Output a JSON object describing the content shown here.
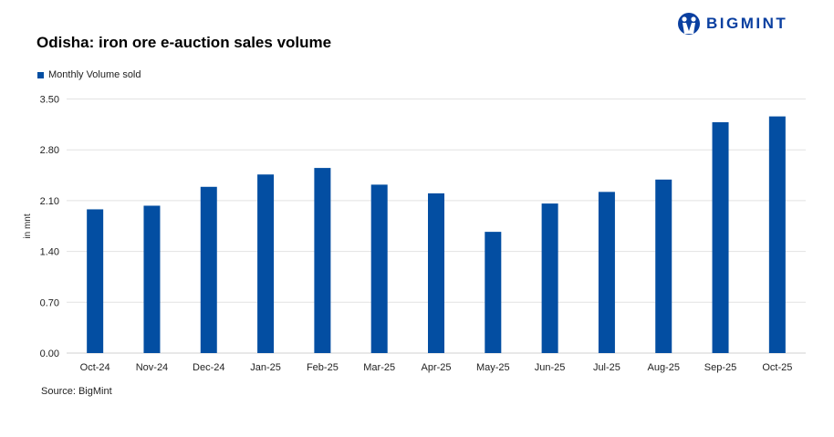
{
  "logo": {
    "text": "BIGMINT"
  },
  "source": "Source: BigMint",
  "chart_data": {
    "type": "bar",
    "title": "Odisha: iron ore e-auction sales volume",
    "ylabel": "in mnt",
    "xlabel": "",
    "categories": [
      "Oct-24",
      "Nov-24",
      "Dec-24",
      "Jan-25",
      "Feb-25",
      "Mar-25",
      "Apr-25",
      "May-25",
      "Jun-25",
      "Jul-25",
      "Aug-25",
      "Sep-25",
      "Oct-25"
    ],
    "series": [
      {
        "name": "Monthly Volume sold",
        "values": [
          1.98,
          2.03,
          2.29,
          2.46,
          2.55,
          2.32,
          2.2,
          1.67,
          2.06,
          2.22,
          2.39,
          3.18,
          3.26
        ],
        "color": "#034ea2"
      }
    ],
    "ylim": [
      0,
      3.5
    ],
    "yticks": [
      "0.00",
      "0.70",
      "1.40",
      "2.10",
      "2.80",
      "3.50"
    ],
    "grid": true,
    "legend": "top-left"
  }
}
